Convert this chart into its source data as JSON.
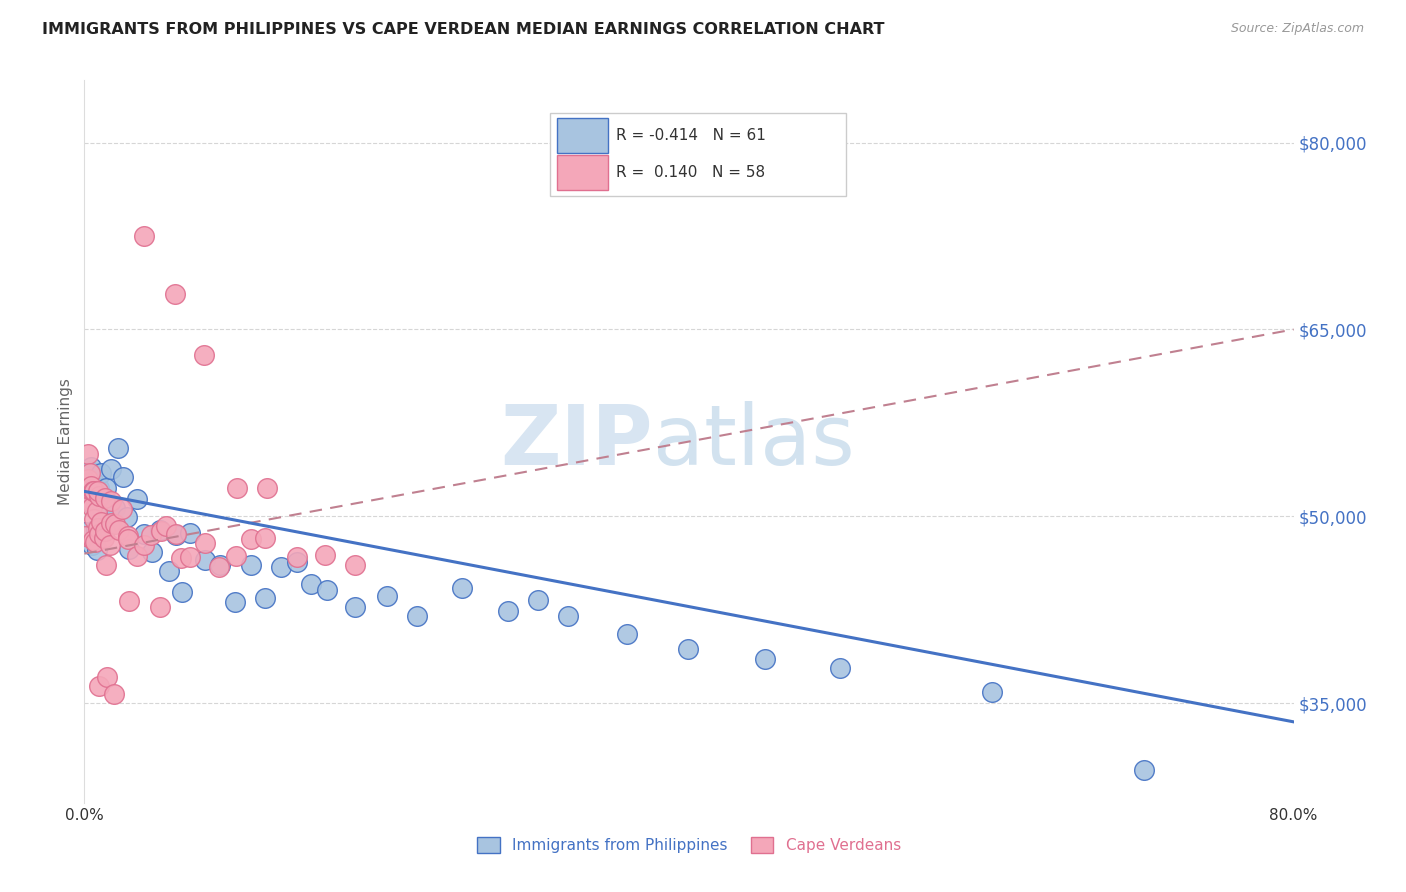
{
  "title": "IMMIGRANTS FROM PHILIPPINES VS CAPE VERDEAN MEDIAN EARNINGS CORRELATION CHART",
  "source": "Source: ZipAtlas.com",
  "ylabel": "Median Earnings",
  "y_ticks": [
    35000,
    50000,
    65000,
    80000
  ],
  "y_tick_labels": [
    "$35,000",
    "$50,000",
    "$65,000",
    "$80,000"
  ],
  "xlim": [
    0.0,
    0.8
  ],
  "ylim": [
    27000,
    85000
  ],
  "legend_R_phil": "-0.414",
  "legend_N_phil": "61",
  "legend_R_cape": "0.140",
  "legend_N_cape": "58",
  "color_phil_fill": "#a8c4e0",
  "color_cape_fill": "#f4a7b9",
  "color_phil_edge": "#4472c4",
  "color_cape_edge": "#e07090",
  "color_phil_line": "#4472c4",
  "color_cape_line": "#c08090",
  "color_blue_text": "#4472c4",
  "phil_trend_x": [
    0.0,
    0.8
  ],
  "phil_trend_y": [
    52000,
    33500
  ],
  "cape_trend_x": [
    0.0,
    0.8
  ],
  "cape_trend_y": [
    47000,
    65000
  ],
  "phil_x": [
    0.001,
    0.002,
    0.003,
    0.003,
    0.004,
    0.004,
    0.005,
    0.005,
    0.006,
    0.006,
    0.007,
    0.007,
    0.008,
    0.008,
    0.009,
    0.009,
    0.01,
    0.01,
    0.011,
    0.012,
    0.013,
    0.014,
    0.015,
    0.016,
    0.017,
    0.018,
    0.02,
    0.022,
    0.025,
    0.028,
    0.03,
    0.035,
    0.04,
    0.045,
    0.05,
    0.055,
    0.06,
    0.065,
    0.07,
    0.08,
    0.09,
    0.1,
    0.11,
    0.12,
    0.13,
    0.14,
    0.15,
    0.16,
    0.18,
    0.2,
    0.22,
    0.25,
    0.28,
    0.3,
    0.32,
    0.36,
    0.4,
    0.45,
    0.5,
    0.6,
    0.7
  ],
  "phil_y": [
    49000,
    53000,
    51000,
    55000,
    50000,
    54000,
    48000,
    52000,
    51000,
    53000,
    49000,
    52000,
    50000,
    53000,
    48000,
    51000,
    52000,
    54000,
    50000,
    53000,
    51000,
    49000,
    52000,
    50000,
    53000,
    49000,
    51000,
    55000,
    52000,
    50000,
    48000,
    51000,
    49000,
    47000,
    48000,
    46000,
    47000,
    45000,
    48000,
    46000,
    47000,
    45000,
    46000,
    44000,
    45000,
    46000,
    44000,
    45000,
    43000,
    44000,
    43000,
    44000,
    42000,
    43000,
    42000,
    41000,
    40000,
    39000,
    38000,
    37000,
    29000
  ],
  "cape_x": [
    0.001,
    0.002,
    0.002,
    0.003,
    0.003,
    0.004,
    0.004,
    0.005,
    0.005,
    0.006,
    0.006,
    0.007,
    0.007,
    0.008,
    0.008,
    0.009,
    0.009,
    0.01,
    0.01,
    0.011,
    0.012,
    0.013,
    0.014,
    0.015,
    0.016,
    0.017,
    0.018,
    0.02,
    0.022,
    0.025,
    0.028,
    0.03,
    0.035,
    0.04,
    0.045,
    0.05,
    0.055,
    0.06,
    0.065,
    0.07,
    0.08,
    0.09,
    0.1,
    0.11,
    0.12,
    0.14,
    0.16,
    0.18,
    0.04,
    0.06,
    0.08,
    0.1,
    0.12,
    0.03,
    0.05,
    0.01,
    0.015,
    0.02
  ],
  "cape_y": [
    48000,
    52000,
    55000,
    50000,
    54000,
    51000,
    53000,
    48000,
    52000,
    50000,
    53000,
    49000,
    51000,
    48000,
    50000,
    52000,
    49000,
    51000,
    48000,
    50000,
    49000,
    51000,
    50000,
    48000,
    49000,
    51000,
    50000,
    49000,
    48000,
    50000,
    49000,
    48000,
    47000,
    49000,
    48000,
    47000,
    49000,
    48000,
    47000,
    46000,
    48000,
    47000,
    46000,
    48000,
    47000,
    46000,
    47000,
    46000,
    73000,
    68000,
    63000,
    52000,
    51000,
    43000,
    42000,
    37000,
    36000,
    35000
  ]
}
